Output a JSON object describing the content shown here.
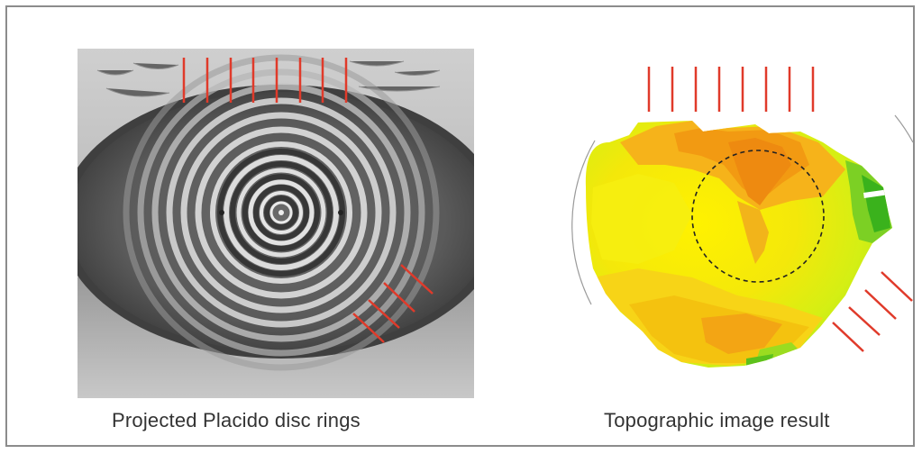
{
  "figure": {
    "left_caption": "Projected Placido disc rings",
    "right_caption": "Topographic image result"
  },
  "colors": {
    "frame_border": "#8c8c8c",
    "marker_lines": "#e03a2a",
    "caption_text": "#333333",
    "dashed_circle": "#222222"
  }
}
